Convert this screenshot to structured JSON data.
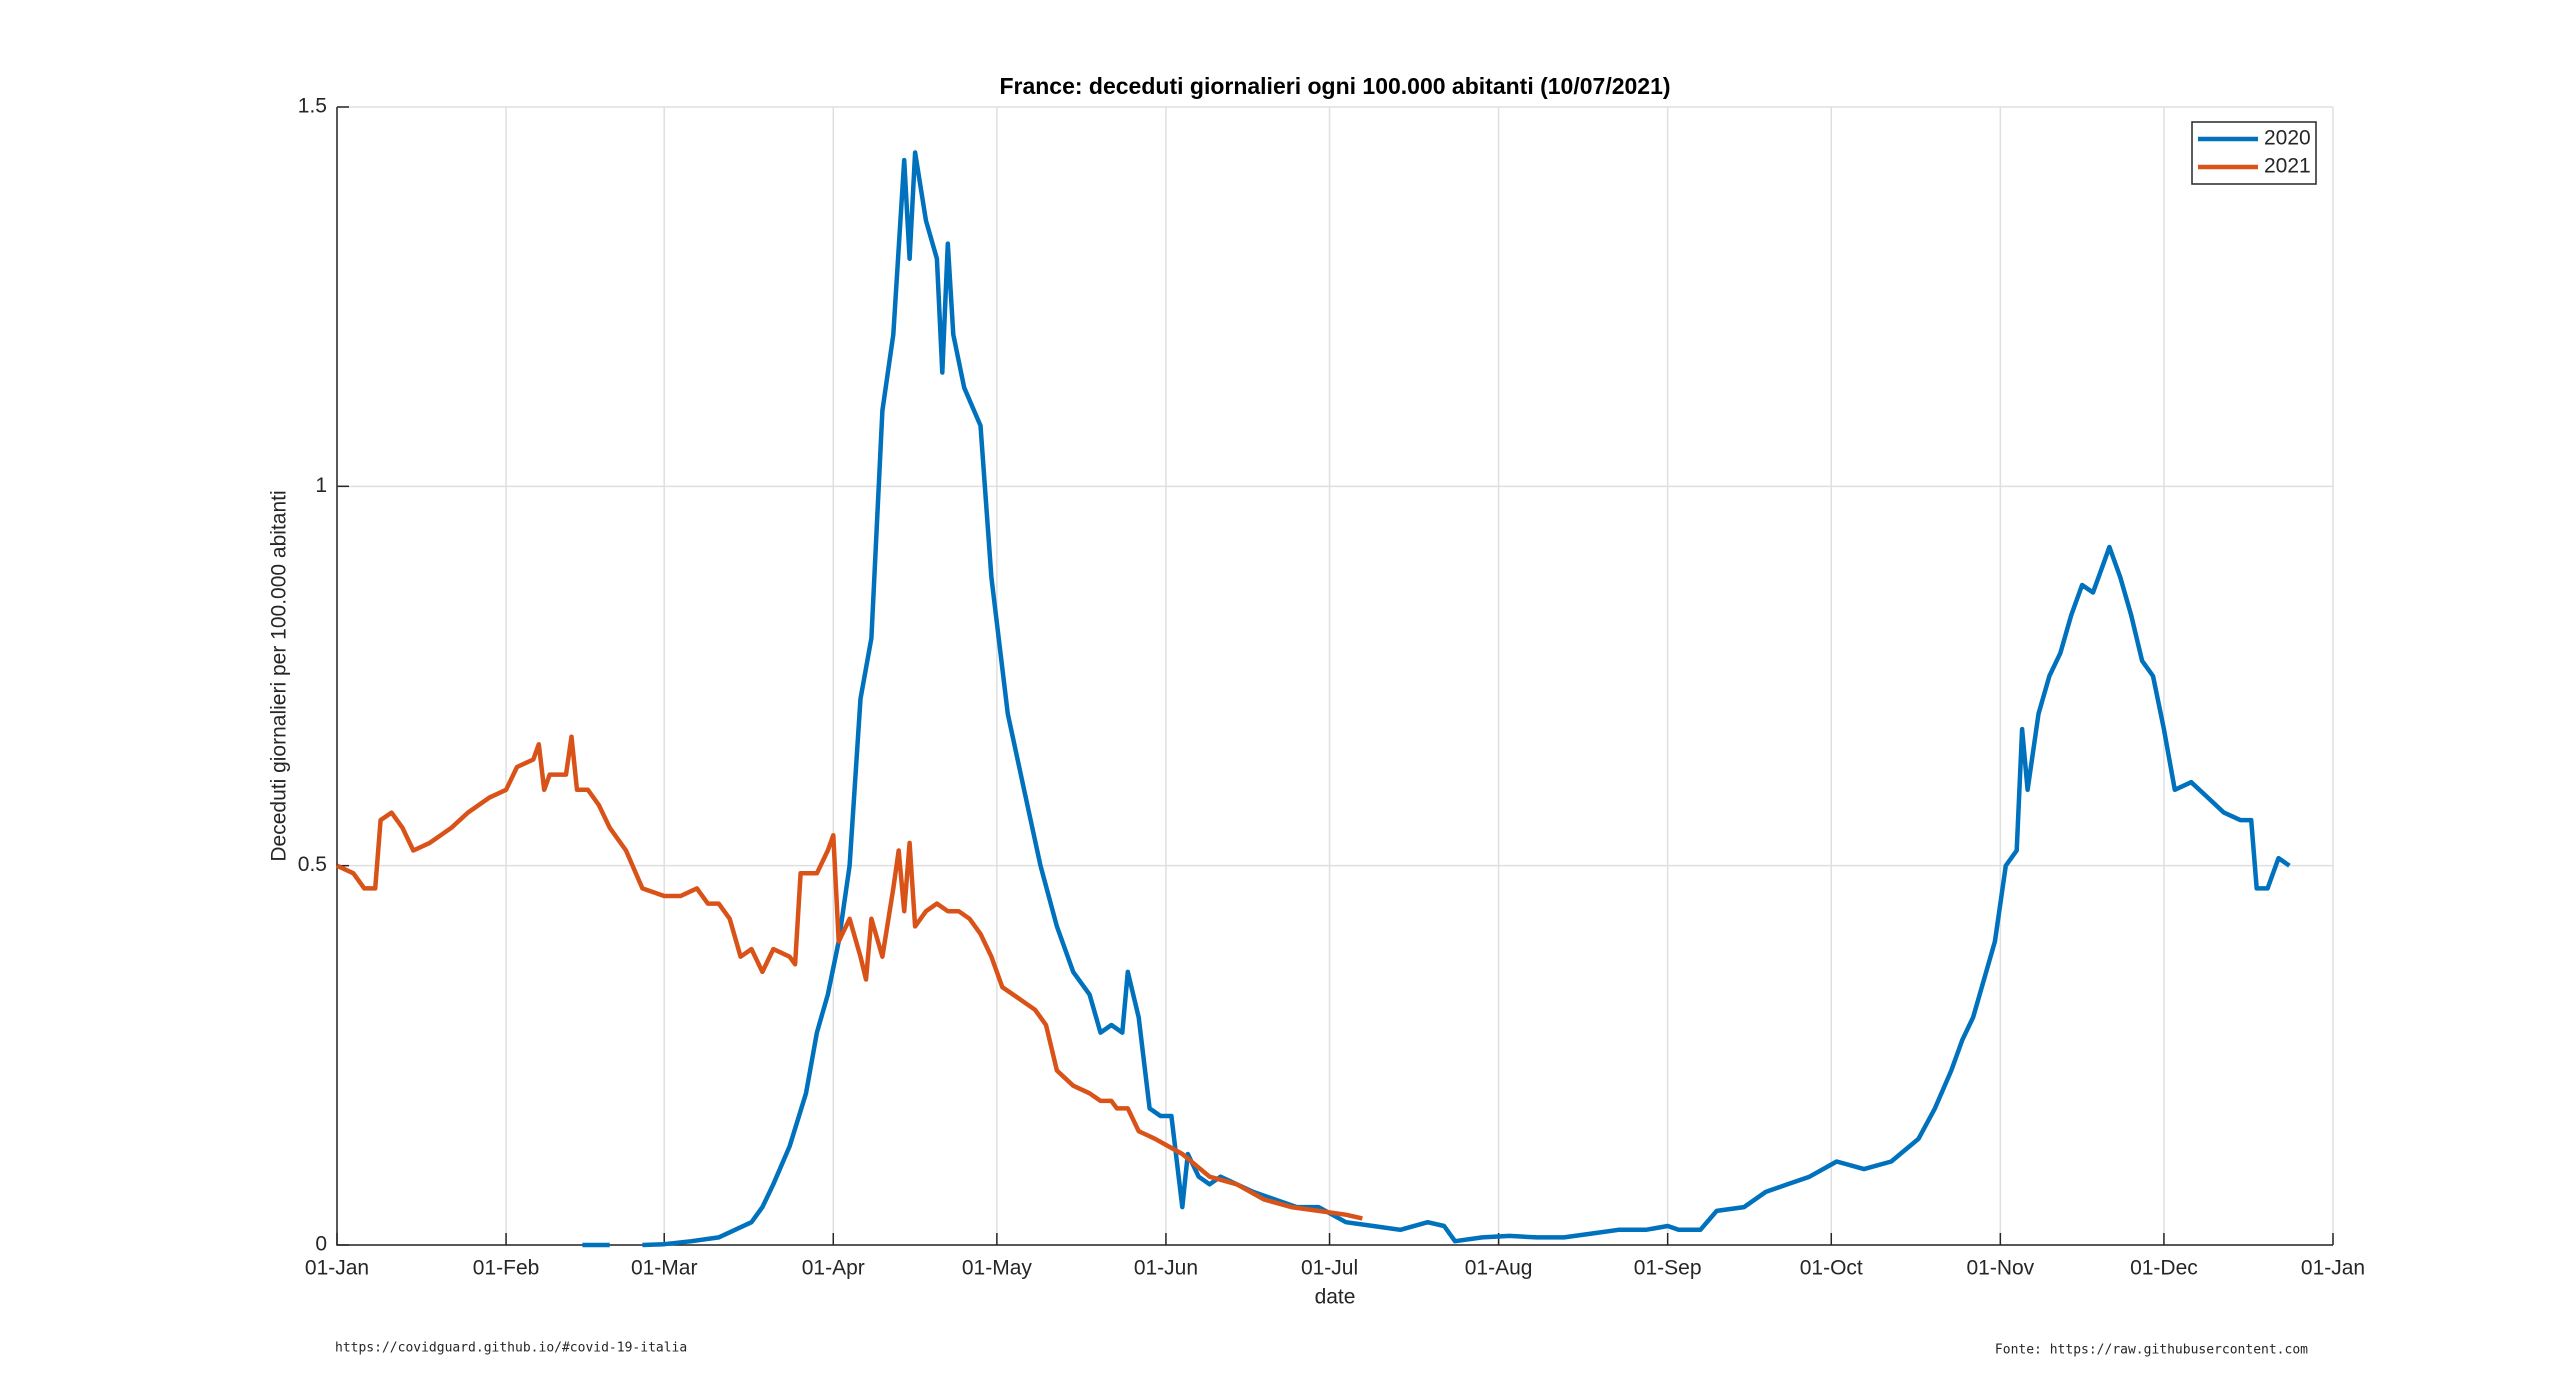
{
  "chart_data": {
    "type": "line",
    "title": "France: deceduti giornalieri ogni 100.000 abitanti (10/07/2021)",
    "xlabel": "date",
    "ylabel": "Deceduti giornalieri per 100.000 abitanti",
    "footer_left": "https://covidguard.github.io/#covid-19-italia",
    "footer_right": "Fonte: https://raw.githubusercontent.com",
    "xlim": [
      0,
      366
    ],
    "ylim": [
      0,
      1.5
    ],
    "xticks": [
      {
        "value": 0,
        "label": "01-Jan"
      },
      {
        "value": 31,
        "label": "01-Feb"
      },
      {
        "value": 60,
        "label": "01-Mar"
      },
      {
        "value": 91,
        "label": "01-Apr"
      },
      {
        "value": 121,
        "label": "01-May"
      },
      {
        "value": 152,
        "label": "01-Jun"
      },
      {
        "value": 182,
        "label": "01-Jul"
      },
      {
        "value": 213,
        "label": "01-Aug"
      },
      {
        "value": 244,
        "label": "01-Sep"
      },
      {
        "value": 274,
        "label": "01-Oct"
      },
      {
        "value": 305,
        "label": "01-Nov"
      },
      {
        "value": 335,
        "label": "01-Dec"
      },
      {
        "value": 366,
        "label": "01-Jan"
      }
    ],
    "yticks": [
      0,
      0.5,
      1,
      1.5
    ],
    "grid": true,
    "legend": "top-right",
    "series": [
      {
        "name": "2020",
        "color": "#0072bd",
        "x": [
          45,
          50,
          53,
          56,
          60,
          65,
          70,
          73,
          76,
          78,
          80,
          83,
          86,
          88,
          90,
          92,
          94,
          96,
          98,
          100,
          102,
          104,
          105,
          106,
          108,
          110,
          111,
          112,
          113,
          115,
          118,
          120,
          123,
          126,
          129,
          132,
          135,
          138,
          140,
          142,
          144,
          145,
          147,
          149,
          151,
          153,
          155,
          156,
          158,
          160,
          162,
          165,
          168,
          172,
          176,
          180,
          185,
          190,
          195,
          200,
          203,
          205,
          210,
          215,
          220,
          225,
          230,
          235,
          240,
          244,
          246,
          250,
          253,
          258,
          262,
          266,
          270,
          275,
          280,
          285,
          290,
          293,
          296,
          298,
          300,
          302,
          304,
          306,
          308,
          309,
          310,
          312,
          314,
          316,
          318,
          320,
          322,
          324,
          325,
          327,
          329,
          331,
          333,
          335,
          337,
          340,
          343,
          346,
          349,
          351,
          352,
          354,
          356,
          358
        ],
        "values": [
          0,
          0,
          null,
          0,
          0.001,
          0.005,
          0.01,
          0.02,
          0.03,
          0.05,
          0.08,
          0.13,
          0.2,
          0.28,
          0.33,
          0.4,
          0.5,
          0.72,
          0.8,
          1.1,
          1.2,
          1.43,
          1.3,
          1.44,
          1.35,
          1.3,
          1.15,
          1.32,
          1.2,
          1.13,
          1.08,
          0.88,
          0.7,
          0.6,
          0.5,
          0.42,
          0.36,
          0.33,
          0.28,
          0.29,
          0.28,
          0.36,
          0.3,
          0.18,
          0.17,
          0.17,
          0.05,
          0.12,
          0.09,
          0.08,
          0.09,
          0.08,
          0.07,
          0.06,
          0.05,
          0.05,
          0.03,
          0.025,
          0.02,
          0.03,
          0.025,
          0.005,
          0.01,
          0.012,
          0.01,
          0.01,
          0.015,
          0.02,
          0.02,
          0.025,
          0.02,
          0.02,
          0.045,
          0.05,
          0.07,
          0.08,
          0.09,
          0.11,
          0.1,
          0.11,
          0.14,
          0.18,
          0.23,
          0.27,
          0.3,
          0.35,
          0.4,
          0.5,
          0.52,
          0.68,
          0.6,
          0.7,
          0.75,
          0.78,
          0.83,
          0.87,
          0.86,
          0.9,
          0.92,
          0.88,
          0.83,
          0.77,
          0.75,
          0.68,
          0.6,
          0.61,
          0.59,
          0.57,
          0.56,
          0.56,
          0.47,
          0.47,
          0.51,
          0.5
        ]
      },
      {
        "name": "2021",
        "color": "#d95319",
        "x": [
          0,
          3,
          5,
          7,
          8,
          10,
          12,
          14,
          17,
          19,
          21,
          24,
          28,
          31,
          33,
          36,
          37,
          38,
          39,
          42,
          43,
          44,
          46,
          48,
          50,
          53,
          56,
          60,
          63,
          66,
          68,
          70,
          72,
          74,
          76,
          78,
          80,
          83,
          84,
          85,
          88,
          90,
          91,
          92,
          94,
          96,
          97,
          98,
          100,
          102,
          103,
          104,
          105,
          106,
          108,
          110,
          112,
          114,
          116,
          118,
          120,
          122,
          124,
          126,
          128,
          130,
          132,
          135,
          138,
          140,
          142,
          143,
          145,
          147,
          150,
          155,
          160,
          165,
          170,
          175,
          180,
          185,
          188
        ],
        "values": [
          0.5,
          0.49,
          0.47,
          0.47,
          0.56,
          0.57,
          0.55,
          0.52,
          0.53,
          0.54,
          0.55,
          0.57,
          0.59,
          0.6,
          0.63,
          0.64,
          0.66,
          0.6,
          0.62,
          0.62,
          0.67,
          0.6,
          0.6,
          0.58,
          0.55,
          0.52,
          0.47,
          0.46,
          0.46,
          0.47,
          0.45,
          0.45,
          0.43,
          0.38,
          0.39,
          0.36,
          0.39,
          0.38,
          0.37,
          0.49,
          0.49,
          0.52,
          0.54,
          0.4,
          0.43,
          0.38,
          0.35,
          0.43,
          0.38,
          0.47,
          0.52,
          0.44,
          0.53,
          0.42,
          0.44,
          0.45,
          0.44,
          0.44,
          0.43,
          0.41,
          0.38,
          0.34,
          0.33,
          0.32,
          0.31,
          0.29,
          0.23,
          0.21,
          0.2,
          0.19,
          0.19,
          0.18,
          0.18,
          0.15,
          0.14,
          0.12,
          0.09,
          0.08,
          0.06,
          0.05,
          0.045,
          0.04,
          0.035
        ]
      }
    ]
  }
}
